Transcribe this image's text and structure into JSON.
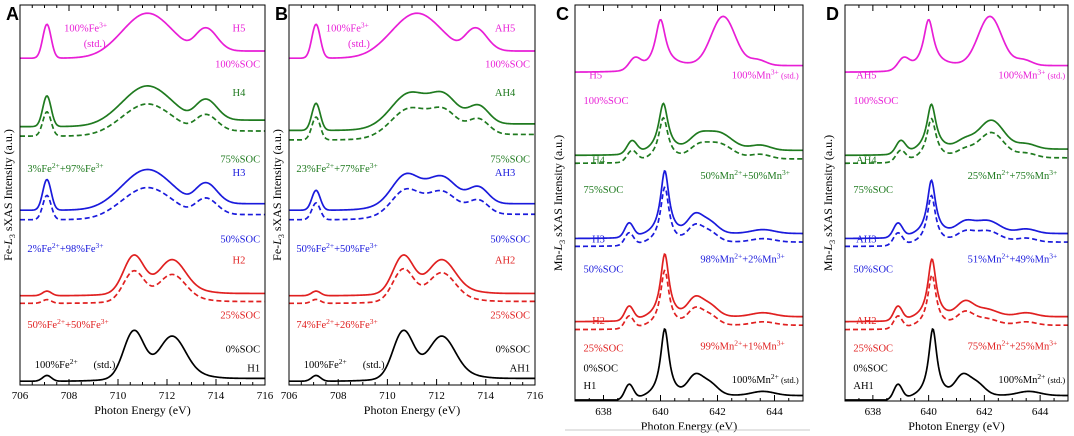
{
  "chart_data": [
    {
      "letter": "A",
      "type": "line",
      "xlabel": "Photon Energy (eV)",
      "ylabel": "Fe-L3 sXAS Intensity (a.u.)",
      "ylabel_element": "Fe",
      "ylabel_edge": "L",
      "ylabel_sub": "3",
      "ylabel_rest": " sXAS Intensity (a.u.)",
      "xlim": [
        706,
        716
      ],
      "xticks": [
        706,
        708,
        710,
        712,
        714,
        716
      ],
      "series": [
        {
          "name": "H5",
          "color": "#e81ed6",
          "style": "solid",
          "offset": 8.6,
          "scale": 1.05,
          "shape": "fe3"
        },
        {
          "name": "H4",
          "color": "#1f7a1f",
          "style": "solid",
          "offset": 6.8,
          "scale": 0.95,
          "shape": "fe3"
        },
        {
          "name": "H4 fit",
          "color": "#1f7a1f",
          "style": "dashed",
          "offset": 6.55,
          "scale": 0.75,
          "shape": "fe3"
        },
        {
          "name": "H3",
          "color": "#1a1adc",
          "style": "solid",
          "offset": 4.6,
          "scale": 0.95,
          "shape": "fe3"
        },
        {
          "name": "H3 fit",
          "color": "#1a1adc",
          "style": "dashed",
          "offset": 4.35,
          "scale": 0.75,
          "shape": "fe3"
        },
        {
          "name": "H2",
          "color": "#e02020",
          "style": "solid",
          "offset": 2.35,
          "scale": 1.0,
          "shape": "fe2"
        },
        {
          "name": "H2 fit",
          "color": "#e02020",
          "style": "dashed",
          "offset": 2.15,
          "scale": 0.8,
          "shape": "fe2"
        },
        {
          "name": "H1",
          "color": "#000000",
          "style": "solid",
          "offset": 0.1,
          "scale": 1.25,
          "shape": "fe2"
        }
      ],
      "annotations": [
        {
          "text": "H5",
          "color": "#e81ed6",
          "x": 715.2,
          "y": 9.3,
          "anchor": "end"
        },
        {
          "text": "100%SOC",
          "color": "#e81ed6",
          "x": 715.8,
          "y": 8.35,
          "anchor": "end"
        },
        {
          "base": "100%Fe",
          "sup": "3+",
          "color": "#e81ed6",
          "x": 707.8,
          "y": 9.3
        },
        {
          "text": "(std.)",
          "color": "#e81ed6",
          "x": 708.6,
          "y": 8.9,
          "small": true
        },
        {
          "text": "H4",
          "color": "#1f7a1f",
          "x": 715.2,
          "y": 7.6,
          "anchor": "end"
        },
        {
          "text": "75%SOC",
          "color": "#1f7a1f",
          "x": 715.8,
          "y": 5.85,
          "anchor": "end"
        },
        {
          "base": "3%Fe",
          "sup": "2+",
          "mid": "+97%Fe",
          "sup2": "3+",
          "color": "#1f7a1f",
          "x": 706.3,
          "y": 5.6
        },
        {
          "text": "H3",
          "color": "#1a1adc",
          "x": 715.2,
          "y": 5.5,
          "anchor": "end"
        },
        {
          "text": "50%SOC",
          "color": "#1a1adc",
          "x": 715.8,
          "y": 3.75,
          "anchor": "end"
        },
        {
          "base": "2%Fe",
          "sup": "2+",
          "mid": "+98%Fe",
          "sup2": "3+",
          "color": "#1a1adc",
          "x": 706.3,
          "y": 3.5
        },
        {
          "text": "H2",
          "color": "#e02020",
          "x": 715.2,
          "y": 3.2,
          "anchor": "end"
        },
        {
          "text": "25%SOC",
          "color": "#e02020",
          "x": 715.8,
          "y": 1.75,
          "anchor": "end"
        },
        {
          "base": "50%Fe",
          "sup": "2+",
          "mid": "+50%Fe",
          "sup2": "3+",
          "color": "#e02020",
          "x": 706.3,
          "y": 1.5
        },
        {
          "text": "0%SOC",
          "color": "#000000",
          "x": 715.8,
          "y": 0.85,
          "anchor": "end"
        },
        {
          "text": "H1",
          "color": "#000000",
          "x": 715.8,
          "y": 0.35,
          "anchor": "end"
        },
        {
          "base": "100%Fe",
          "sup": "2+",
          "color": "#000000",
          "x": 706.6,
          "y": 0.45
        },
        {
          "text": "(std.)",
          "color": "#000000",
          "x": 709.0,
          "y": 0.45,
          "small": true
        }
      ]
    },
    {
      "letter": "B",
      "type": "line",
      "xlabel": "Photon Energy (eV)",
      "ylabel": "Fe-L3 sXAS Intensity (a.u.)",
      "ylabel_element": "Fe",
      "ylabel_edge": "L",
      "ylabel_sub": "3",
      "ylabel_rest": " sXAS Intensity (a.u.)",
      "xlim": [
        706,
        716
      ],
      "xticks": [
        706,
        708,
        710,
        712,
        714,
        716
      ],
      "series": [
        {
          "name": "AH5",
          "color": "#e81ed6",
          "style": "solid",
          "offset": 8.6,
          "scale": 1.05,
          "shape": "fe3"
        },
        {
          "name": "AH4",
          "color": "#1f7a1f",
          "style": "solid",
          "offset": 6.7,
          "scale": 0.95,
          "shape": "mixB4"
        },
        {
          "name": "AH4 fit",
          "color": "#1f7a1f",
          "style": "dashed",
          "offset": 6.45,
          "scale": 0.8,
          "shape": "mixB4"
        },
        {
          "name": "AH3",
          "color": "#1a1adc",
          "style": "solid",
          "offset": 4.6,
          "scale": 0.95,
          "shape": "mixB3"
        },
        {
          "name": "AH3 fit",
          "color": "#1a1adc",
          "style": "dashed",
          "offset": 4.35,
          "scale": 0.8,
          "shape": "mixB3"
        },
        {
          "name": "AH2",
          "color": "#e02020",
          "style": "solid",
          "offset": 2.35,
          "scale": 1.0,
          "shape": "fe2"
        },
        {
          "name": "AH2 fit",
          "color": "#e02020",
          "style": "dashed",
          "offset": 2.15,
          "scale": 0.85,
          "shape": "fe2"
        },
        {
          "name": "AH1",
          "color": "#000000",
          "style": "solid",
          "offset": 0.1,
          "scale": 1.25,
          "shape": "fe2"
        }
      ],
      "annotations": [
        {
          "text": "AH5",
          "color": "#e81ed6",
          "x": 715.2,
          "y": 9.3,
          "anchor": "end"
        },
        {
          "text": "100%SOC",
          "color": "#e81ed6",
          "x": 715.8,
          "y": 8.35,
          "anchor": "end"
        },
        {
          "base": "100%Fe",
          "sup": "3+",
          "color": "#e81ed6",
          "x": 707.5,
          "y": 9.3
        },
        {
          "text": "(std.)",
          "color": "#e81ed6",
          "x": 708.4,
          "y": 8.9,
          "small": true
        },
        {
          "text": "AH4",
          "color": "#1f7a1f",
          "x": 715.2,
          "y": 7.6,
          "anchor": "end"
        },
        {
          "text": "75%SOC",
          "color": "#1f7a1f",
          "x": 715.8,
          "y": 5.85,
          "anchor": "end"
        },
        {
          "base": "23%Fe",
          "sup": "2+",
          "mid": "+77%Fe",
          "sup2": "3+",
          "color": "#1f7a1f",
          "x": 706.3,
          "y": 5.6
        },
        {
          "text": "AH3",
          "color": "#1a1adc",
          "x": 715.2,
          "y": 5.5,
          "anchor": "end"
        },
        {
          "text": "50%SOC",
          "color": "#1a1adc",
          "x": 715.8,
          "y": 3.75,
          "anchor": "end"
        },
        {
          "base": "50%Fe",
          "sup": "2+",
          "mid": "+50%Fe",
          "sup2": "3+",
          "color": "#1a1adc",
          "x": 706.3,
          "y": 3.5
        },
        {
          "text": "AH2",
          "color": "#e02020",
          "x": 715.2,
          "y": 3.2,
          "anchor": "end"
        },
        {
          "text": "25%SOC",
          "color": "#e02020",
          "x": 715.8,
          "y": 1.75,
          "anchor": "end"
        },
        {
          "base": "74%Fe",
          "sup": "2+",
          "mid": "+26%Fe",
          "sup2": "3+",
          "color": "#e02020",
          "x": 706.3,
          "y": 1.5
        },
        {
          "text": "0%SOC",
          "color": "#000000",
          "x": 715.8,
          "y": 0.85,
          "anchor": "end"
        },
        {
          "text": "AH1",
          "color": "#000000",
          "x": 715.8,
          "y": 0.35,
          "anchor": "end"
        },
        {
          "base": "100%Fe",
          "sup": "2+",
          "color": "#000000",
          "x": 706.6,
          "y": 0.45
        },
        {
          "text": "(std.)",
          "color": "#000000",
          "x": 709.0,
          "y": 0.45,
          "small": true
        }
      ]
    },
    {
      "letter": "C",
      "type": "line",
      "xlabel": "Photon Energy (eV)",
      "ylabel": "Mn-L3 sXAS Intensity (a.u.)",
      "ylabel_element": "Mn",
      "ylabel_edge": "L",
      "ylabel_sub": "3",
      "ylabel_rest": " sXAS Intensity (a.u.)",
      "xlim": [
        637,
        645
      ],
      "xticks": [
        638,
        640,
        642,
        644
      ],
      "series": [
        {
          "name": "H5",
          "color": "#e81ed6",
          "style": "solid",
          "offset": 8.3,
          "scale": 1.4,
          "shape": "mn3"
        },
        {
          "name": "H4",
          "color": "#1f7a1f",
          "style": "solid",
          "offset": 6.2,
          "scale": 1.6,
          "shape": "mnmix50"
        },
        {
          "name": "H4 fit",
          "color": "#1f7a1f",
          "style": "dashed",
          "offset": 6.0,
          "scale": 1.4,
          "shape": "mnmix50"
        },
        {
          "name": "H3",
          "color": "#1a1adc",
          "style": "solid",
          "offset": 4.1,
          "scale": 1.6,
          "shape": "mn2"
        },
        {
          "name": "H3 fit",
          "color": "#1a1adc",
          "style": "dashed",
          "offset": 3.9,
          "scale": 1.4,
          "shape": "mn2"
        },
        {
          "name": "H2",
          "color": "#e02020",
          "style": "solid",
          "offset": 2.0,
          "scale": 1.6,
          "shape": "mn2"
        },
        {
          "name": "H2 fit",
          "color": "#e02020",
          "style": "dashed",
          "offset": 1.8,
          "scale": 1.4,
          "shape": "mn2"
        },
        {
          "name": "H1",
          "color": "#000000",
          "style": "solid",
          "offset": 0.0,
          "scale": 1.7,
          "shape": "mn2"
        }
      ],
      "annotations": [
        {
          "text": "H5",
          "color": "#e81ed6",
          "x": 637.5,
          "y": 8.15
        },
        {
          "text": "100%SOC",
          "color": "#e81ed6",
          "x": 637.3,
          "y": 7.5
        },
        {
          "base": "100%Mn",
          "sup": "3+",
          "tail": " (std.)",
          "color": "#e81ed6",
          "x": 642.5,
          "y": 8.15
        },
        {
          "text": "H4",
          "color": "#1f7a1f",
          "x": 637.6,
          "y": 6.0
        },
        {
          "text": "75%SOC",
          "color": "#1f7a1f",
          "x": 637.3,
          "y": 5.25
        },
        {
          "base": "50%Mn",
          "sup": "2+",
          "mid": "+50%Mn",
          "sup2": "3+",
          "color": "#1f7a1f",
          "x": 641.4,
          "y": 5.6
        },
        {
          "text": "H3",
          "color": "#1a1adc",
          "x": 637.6,
          "y": 4.0
        },
        {
          "text": "50%SOC",
          "color": "#1a1adc",
          "x": 637.3,
          "y": 3.25
        },
        {
          "base": "98%Mn",
          "sup": "2+",
          "mid": "+2%Mn",
          "sup2": "3+",
          "color": "#1a1adc",
          "x": 641.4,
          "y": 3.5
        },
        {
          "text": "H2",
          "color": "#e02020",
          "x": 637.6,
          "y": 1.95
        },
        {
          "text": "25%SOC",
          "color": "#e02020",
          "x": 637.3,
          "y": 1.25
        },
        {
          "base": "99%Mn",
          "sup": "2+",
          "mid": "+1%Mn",
          "sup2": "3+",
          "color": "#e02020",
          "x": 641.4,
          "y": 1.3
        },
        {
          "text": "0%SOC",
          "color": "#000000",
          "x": 637.3,
          "y": 0.75
        },
        {
          "text": "H1",
          "color": "#000000",
          "x": 637.3,
          "y": 0.3
        },
        {
          "base": "100%Mn",
          "sup": "2+",
          "tail": " (std.)",
          "color": "#000000",
          "x": 642.5,
          "y": 0.45
        }
      ]
    },
    {
      "letter": "D",
      "type": "line",
      "xlabel": "Photon Energy (eV)",
      "ylabel": "Mn-L3 sXAS Intensity (a.u.)",
      "ylabel_element": "Mn",
      "ylabel_edge": "L",
      "ylabel_sub": "3",
      "ylabel_rest": " sXAS Intensity (a.u.)",
      "xlim": [
        637,
        645
      ],
      "xticks": [
        638,
        640,
        642,
        644
      ],
      "series": [
        {
          "name": "AH5",
          "color": "#e81ed6",
          "style": "solid",
          "offset": 8.3,
          "scale": 1.4,
          "shape": "mn3"
        },
        {
          "name": "AH4",
          "color": "#1f7a1f",
          "style": "solid",
          "offset": 6.2,
          "scale": 1.6,
          "shape": "mnmix25"
        },
        {
          "name": "AH4 fit",
          "color": "#1f7a1f",
          "style": "dashed",
          "offset": 6.0,
          "scale": 1.4,
          "shape": "mnmix25"
        },
        {
          "name": "AH3",
          "color": "#1a1adc",
          "style": "solid",
          "offset": 4.1,
          "scale": 1.6,
          "shape": "mnmix51"
        },
        {
          "name": "AH3 fit",
          "color": "#1a1adc",
          "style": "dashed",
          "offset": 3.9,
          "scale": 1.4,
          "shape": "mnmix51"
        },
        {
          "name": "AH2",
          "color": "#e02020",
          "style": "solid",
          "offset": 2.0,
          "scale": 1.6,
          "shape": "mnmix75"
        },
        {
          "name": "AH2 fit",
          "color": "#e02020",
          "style": "dashed",
          "offset": 1.8,
          "scale": 1.4,
          "shape": "mnmix75"
        },
        {
          "name": "AH1",
          "color": "#000000",
          "style": "solid",
          "offset": 0.0,
          "scale": 1.7,
          "shape": "mn2"
        }
      ],
      "annotations": [
        {
          "text": "AH5",
          "color": "#e81ed6",
          "x": 637.4,
          "y": 8.15
        },
        {
          "text": "100%SOC",
          "color": "#e81ed6",
          "x": 637.3,
          "y": 7.5
        },
        {
          "base": "100%Mn",
          "sup": "3+",
          "tail": " (std.)",
          "color": "#e81ed6",
          "x": 642.5,
          "y": 8.15
        },
        {
          "text": "AH4",
          "color": "#1f7a1f",
          "x": 637.4,
          "y": 6.0
        },
        {
          "text": "75%SOC",
          "color": "#1f7a1f",
          "x": 637.3,
          "y": 5.25
        },
        {
          "base": "25%Mn",
          "sup": "2+",
          "mid": "+75%Mn",
          "sup2": "3+",
          "color": "#1f7a1f",
          "x": 641.4,
          "y": 5.6
        },
        {
          "text": "AH3",
          "color": "#1a1adc",
          "x": 637.4,
          "y": 4.0
        },
        {
          "text": "50%SOC",
          "color": "#1a1adc",
          "x": 637.3,
          "y": 3.25
        },
        {
          "base": "51%Mn",
          "sup": "2+",
          "mid": "+49%Mn",
          "sup2": "3+",
          "color": "#1a1adc",
          "x": 641.4,
          "y": 3.5
        },
        {
          "text": "AH2",
          "color": "#e02020",
          "x": 637.4,
          "y": 1.95
        },
        {
          "text": "25%SOC",
          "color": "#e02020",
          "x": 637.3,
          "y": 1.25
        },
        {
          "base": "75%Mn",
          "sup": "2+",
          "mid": "+25%Mn",
          "sup2": "3+",
          "color": "#e02020",
          "x": 641.4,
          "y": 1.3
        },
        {
          "text": "0%SOC",
          "color": "#000000",
          "x": 637.3,
          "y": 0.75
        },
        {
          "text": "AH1",
          "color": "#000000",
          "x": 637.3,
          "y": 0.3
        },
        {
          "base": "100%Mn",
          "sup": "2+",
          "tail": " (std.)",
          "color": "#000000",
          "x": 642.5,
          "y": 0.45
        }
      ]
    }
  ]
}
